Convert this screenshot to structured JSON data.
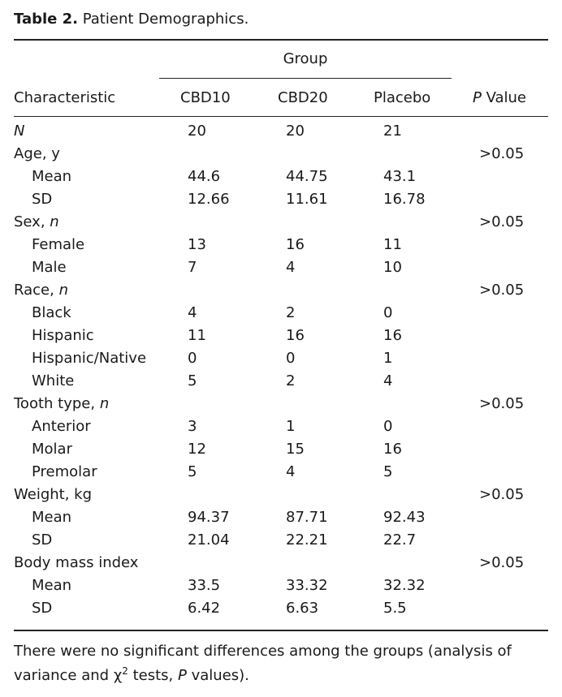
{
  "caption": {
    "label": "Table 2.",
    "title": "Patient Demographics."
  },
  "header": {
    "group": "Group",
    "characteristic": "Characteristic",
    "cbd10": "CBD10",
    "cbd20": "CBD20",
    "placebo": "Placebo",
    "p_italic": "P",
    "p_rest": " Value"
  },
  "rows": [
    {
      "label": "N",
      "italic_label": true,
      "sub": false,
      "cbd10": "20",
      "cbd20": "20",
      "placebo": "21",
      "p": ""
    },
    {
      "label": "Age, y",
      "sub": false,
      "cbd10": "",
      "cbd20": "",
      "placebo": "",
      "p": ">0.05"
    },
    {
      "label": "Mean",
      "sub": true,
      "cbd10": "44.6",
      "cbd20": "44.75",
      "placebo": "43.1",
      "p": ""
    },
    {
      "label": "SD",
      "sub": true,
      "cbd10": "12.66",
      "cbd20": "11.61",
      "placebo": "16.78",
      "p": ""
    },
    {
      "label": "Sex, ",
      "italic_suffix": "n",
      "sub": false,
      "cbd10": "",
      "cbd20": "",
      "placebo": "",
      "p": ">0.05"
    },
    {
      "label": "Female",
      "sub": true,
      "cbd10": "13",
      "cbd20": "16",
      "placebo": "11",
      "p": ""
    },
    {
      "label": "Male",
      "sub": true,
      "cbd10": "7",
      "cbd20": "4",
      "placebo": "10",
      "p": ""
    },
    {
      "label": "Race, ",
      "italic_suffix": "n",
      "sub": false,
      "cbd10": "",
      "cbd20": "",
      "placebo": "",
      "p": ">0.05"
    },
    {
      "label": "Black",
      "sub": true,
      "cbd10": "4",
      "cbd20": "2",
      "placebo": "0",
      "p": ""
    },
    {
      "label": "Hispanic",
      "sub": true,
      "cbd10": "11",
      "cbd20": "16",
      "placebo": "16",
      "p": ""
    },
    {
      "label": "Hispanic/Native",
      "sub": true,
      "cbd10": "0",
      "cbd20": "0",
      "placebo": "1",
      "p": ""
    },
    {
      "label": "White",
      "sub": true,
      "cbd10": "5",
      "cbd20": "2",
      "placebo": "4",
      "p": ""
    },
    {
      "label": "Tooth type, ",
      "italic_suffix": "n",
      "sub": false,
      "cbd10": "",
      "cbd20": "",
      "placebo": "",
      "p": ">0.05"
    },
    {
      "label": "Anterior",
      "sub": true,
      "cbd10": "3",
      "cbd20": "1",
      "placebo": "0",
      "p": ""
    },
    {
      "label": "Molar",
      "sub": true,
      "cbd10": "12",
      "cbd20": "15",
      "placebo": "16",
      "p": ""
    },
    {
      "label": "Premolar",
      "sub": true,
      "cbd10": "5",
      "cbd20": "4",
      "placebo": "5",
      "p": ""
    },
    {
      "label": "Weight, kg",
      "sub": false,
      "cbd10": "",
      "cbd20": "",
      "placebo": "",
      "p": ">0.05"
    },
    {
      "label": "Mean",
      "sub": true,
      "cbd10": "94.37",
      "cbd20": "87.71",
      "placebo": "92.43",
      "p": ""
    },
    {
      "label": "SD",
      "sub": true,
      "cbd10": "21.04",
      "cbd20": "22.21",
      "placebo": "22.7",
      "p": ""
    },
    {
      "label": "Body mass index",
      "sub": false,
      "cbd10": "",
      "cbd20": "",
      "placebo": "",
      "p": ">0.05"
    },
    {
      "label": "Mean",
      "sub": true,
      "cbd10": "33.5",
      "cbd20": "33.32",
      "placebo": "32.32",
      "p": ""
    },
    {
      "label": "SD",
      "sub": true,
      "cbd10": "6.42",
      "cbd20": "6.63",
      "placebo": "5.5",
      "p": ""
    }
  ],
  "footnote": {
    "part1": "There were no significant differences among the groups (analysis of variance and ",
    "chi": "χ",
    "sup": "2",
    "part2": " tests, ",
    "p_italic": "P",
    "part3": " values)."
  }
}
